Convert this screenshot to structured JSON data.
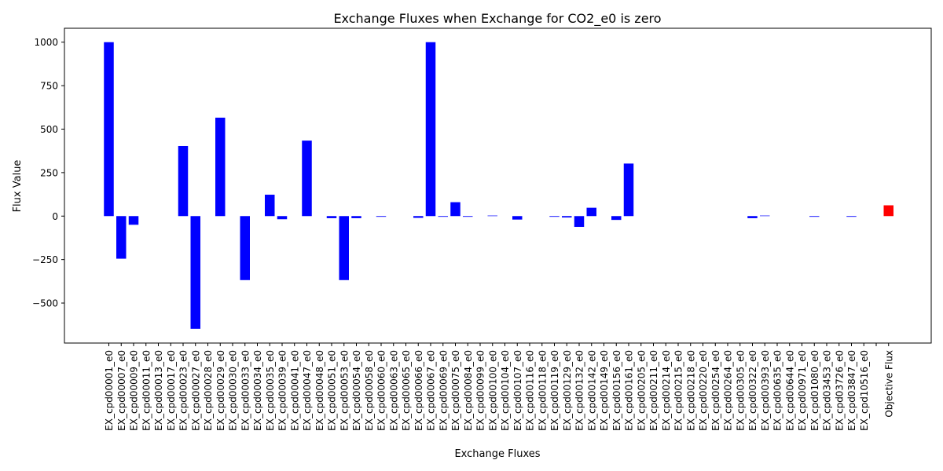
{
  "chart_data": {
    "type": "bar",
    "title": "Exchange Fluxes when Exchange for CO2_e0 is zero",
    "xlabel": "Exchange Fluxes",
    "ylabel": "Flux Value",
    "ylim": [
      -730,
      1080
    ],
    "yticks": [
      -500,
      -250,
      0,
      250,
      500,
      750,
      1000
    ],
    "grid": false,
    "categories": [
      "EX_cpd00001_e0",
      "EX_cpd00007_e0",
      "EX_cpd00009_e0",
      "EX_cpd00011_e0",
      "EX_cpd00013_e0",
      "EX_cpd00017_e0",
      "EX_cpd00023_e0",
      "EX_cpd00027_e0",
      "EX_cpd00028_e0",
      "EX_cpd00029_e0",
      "EX_cpd00030_e0",
      "EX_cpd00033_e0",
      "EX_cpd00034_e0",
      "EX_cpd00035_e0",
      "EX_cpd00039_e0",
      "EX_cpd00041_e0",
      "EX_cpd00047_e0",
      "EX_cpd00048_e0",
      "EX_cpd00051_e0",
      "EX_cpd00053_e0",
      "EX_cpd00054_e0",
      "EX_cpd00058_e0",
      "EX_cpd00060_e0",
      "EX_cpd00063_e0",
      "EX_cpd00065_e0",
      "EX_cpd00066_e0",
      "EX_cpd00067_e0",
      "EX_cpd00069_e0",
      "EX_cpd00075_e0",
      "EX_cpd00084_e0",
      "EX_cpd00099_e0",
      "EX_cpd00100_e0",
      "EX_cpd00104_e0",
      "EX_cpd00107_e0",
      "EX_cpd00116_e0",
      "EX_cpd00118_e0",
      "EX_cpd00119_e0",
      "EX_cpd00129_e0",
      "EX_cpd00132_e0",
      "EX_cpd00142_e0",
      "EX_cpd00149_e0",
      "EX_cpd00156_e0",
      "EX_cpd00161_e0",
      "EX_cpd00205_e0",
      "EX_cpd00211_e0",
      "EX_cpd00214_e0",
      "EX_cpd00215_e0",
      "EX_cpd00218_e0",
      "EX_cpd00220_e0",
      "EX_cpd00254_e0",
      "EX_cpd00264_e0",
      "EX_cpd00305_e0",
      "EX_cpd00322_e0",
      "EX_cpd00393_e0",
      "EX_cpd00635_e0",
      "EX_cpd00644_e0",
      "EX_cpd00971_e0",
      "EX_cpd01080_e0",
      "EX_cpd03453_e0",
      "EX_cpd03726_e0",
      "EX_cpd03847_e0",
      "EX_cpd10516_e0",
      "",
      "Objective Flux"
    ],
    "values": [
      1000,
      -245,
      -50,
      0,
      0,
      0,
      403,
      -648,
      0,
      566,
      0,
      -368,
      0,
      123,
      -18,
      0,
      434,
      0,
      -12,
      -368,
      -12,
      0,
      -4,
      0,
      0,
      -10,
      1000,
      -4,
      80,
      -4,
      0,
      3,
      0,
      -20,
      0,
      0,
      -4,
      -8,
      -62,
      48,
      0,
      -22,
      302,
      0,
      0,
      0,
      0,
      0,
      0,
      0,
      0,
      0,
      -12,
      3,
      0,
      0,
      0,
      -4,
      0,
      0,
      -4,
      0,
      0,
      62
    ],
    "bar_color": "#0000ff",
    "objective_color": "#ff0000"
  }
}
